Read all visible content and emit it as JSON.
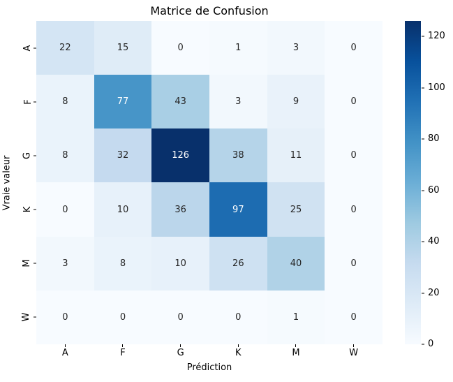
{
  "figure": {
    "title": "Matrice de Confusion",
    "xlabel": "Prédiction",
    "ylabel": "Vraie valeur"
  },
  "chart_data": {
    "type": "heatmap",
    "title": "Matrice de Confusion",
    "xlabel": "Prédiction",
    "ylabel": "Vraie valeur",
    "x_tick_labels": [
      "A",
      "F",
      "G",
      "K",
      "M",
      "W"
    ],
    "y_tick_labels": [
      "A",
      "F",
      "G",
      "K",
      "M",
      "W"
    ],
    "matrix": [
      [
        22,
        15,
        0,
        1,
        3,
        0
      ],
      [
        8,
        77,
        43,
        3,
        9,
        0
      ],
      [
        8,
        32,
        126,
        38,
        11,
        0
      ],
      [
        0,
        10,
        36,
        97,
        25,
        0
      ],
      [
        3,
        8,
        10,
        26,
        40,
        0
      ],
      [
        0,
        0,
        0,
        0,
        1,
        0
      ]
    ],
    "vmin": 0,
    "vmax": 126,
    "colormap": "Blues",
    "colorbar_ticks": [
      0,
      20,
      40,
      60,
      80,
      100,
      120
    ],
    "legend_position": "right-colorbar",
    "grid": false,
    "annotations": true
  },
  "colors": {
    "background": "#ffffff",
    "text": "#000000",
    "annot_dark_text": "#262626",
    "annot_light_text": "#ffffff",
    "tick_color": "#000000",
    "colormap_stops": [
      "#f7fbff",
      "#deebf7",
      "#c6dbef",
      "#9ecae1",
      "#6baed6",
      "#4292c6",
      "#2171b5",
      "#08519c",
      "#08306b"
    ]
  }
}
